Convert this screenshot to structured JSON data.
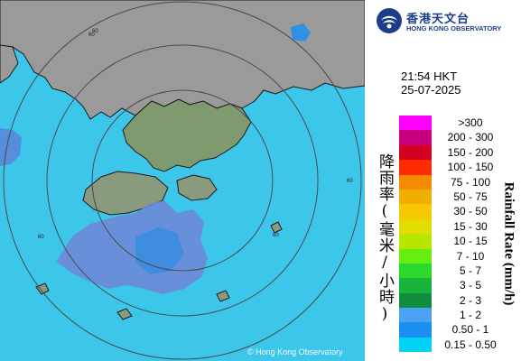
{
  "map": {
    "copyright": "© Hong Kong Observatory",
    "range_ring_labels": [
      "60",
      "60",
      "60",
      "60",
      "60"
    ],
    "colors": {
      "sea": "#3cc6ea",
      "land_gray": "#9a9a9a",
      "land_green": "#7e9a6e",
      "rain_light": "#3b8de0",
      "rain_blue": "#6d8ad8"
    }
  },
  "header": {
    "logo_zh": "香港天文台",
    "logo_en": "HONG KONG OBSERVATORY",
    "logo_icon": "hko-emblem-icon"
  },
  "timestamp": {
    "time": "21:54 HKT",
    "date": "25-07-2025"
  },
  "legend": {
    "title_zh": "降雨率(毫米/小時)",
    "title_en": "Rainfall Rate (mm/h)",
    "items": [
      {
        "label": ">300",
        "color": "#ff00ff"
      },
      {
        "label": "200 - 300",
        "color": "#c8007d"
      },
      {
        "label": "150 - 200",
        "color": "#d40020"
      },
      {
        "label": "100 - 150",
        "color": "#ff2a00"
      },
      {
        "label": "75 - 100",
        "color": "#f38a00"
      },
      {
        "label": "50 - 75",
        "color": "#f2ae00"
      },
      {
        "label": "30 - 50",
        "color": "#f6c800"
      },
      {
        "label": "15 - 30",
        "color": "#e3dc00"
      },
      {
        "label": "10 - 15",
        "color": "#b4e600"
      },
      {
        "label": "7 - 10",
        "color": "#66ee11"
      },
      {
        "label": "5 - 7",
        "color": "#2bd82b"
      },
      {
        "label": "3 - 5",
        "color": "#19b43c"
      },
      {
        "label": "2 - 3",
        "color": "#138c40"
      },
      {
        "label": "1 - 2",
        "color": "#4ba2f5"
      },
      {
        "label": "0.50 - 1",
        "color": "#1a90f2"
      },
      {
        "label": "0.15 - 0.50",
        "color": "#00d2f5"
      }
    ]
  }
}
